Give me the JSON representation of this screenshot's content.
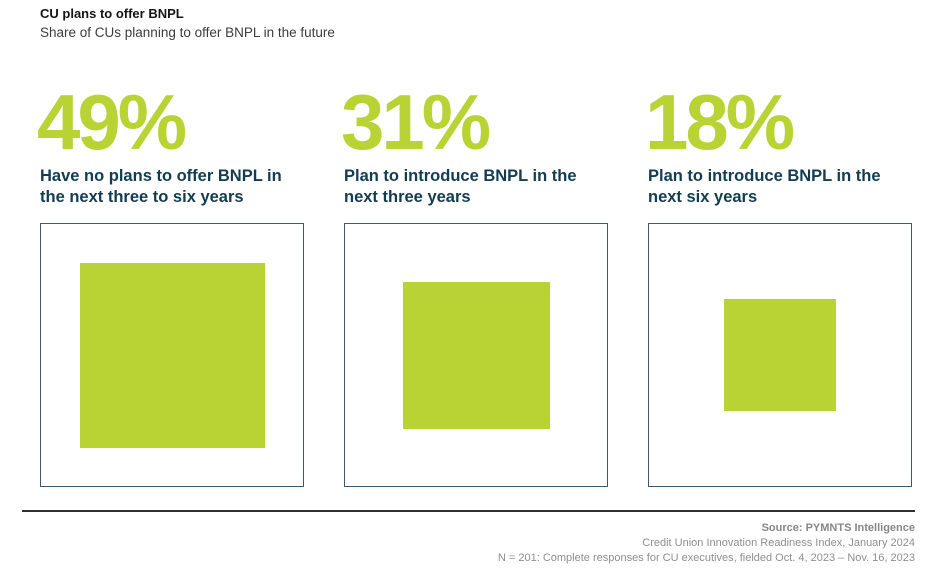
{
  "header": {
    "title": "CU plans to offer BNPL",
    "subtitle": "Share of CUs planning to offer BNPL in the future"
  },
  "stats": [
    {
      "value": 49,
      "value_label": "49%",
      "label": "Have no plans to offer BNPL in the next three to six years"
    },
    {
      "value": 31,
      "value_label": "31%",
      "label": "Plan to introduce BNPL in the next three years"
    },
    {
      "value": 18,
      "value_label": "18%",
      "label": "Plan to introduce BNPL in the next six years"
    }
  ],
  "chart_data": {
    "type": "area",
    "variant": "proportional-area-squares",
    "title": "CU plans to offer BNPL",
    "subtitle": "Share of CUs planning to offer BNPL in the future",
    "categories": [
      "Have no plans to offer BNPL in the next three to six years",
      "Plan to introduce BNPL in the next three years",
      "Plan to introduce BNPL in the next six years"
    ],
    "values": [
      49,
      31,
      18
    ],
    "unit": "%",
    "value_range": [
      0,
      100
    ],
    "legend": "none",
    "grid": "off",
    "notes": "Each outlined box represents 100%; the filled green square's area is proportional to the stated percentage."
  },
  "footer": {
    "source": "Source: PYMNTS Intelligence",
    "line2": "Credit Union Innovation Readiness Index, January 2024",
    "line3": "N = 201: Complete responses for CU executives, fielded Oct. 4, 2023 – Nov. 16, 2023"
  },
  "colors": {
    "accent_green": "#b9d334",
    "navy_text": "#123c52",
    "box_border": "#3b5a6d",
    "footer_gray": "#8f8f8f",
    "divider": "#2e2e2e"
  }
}
